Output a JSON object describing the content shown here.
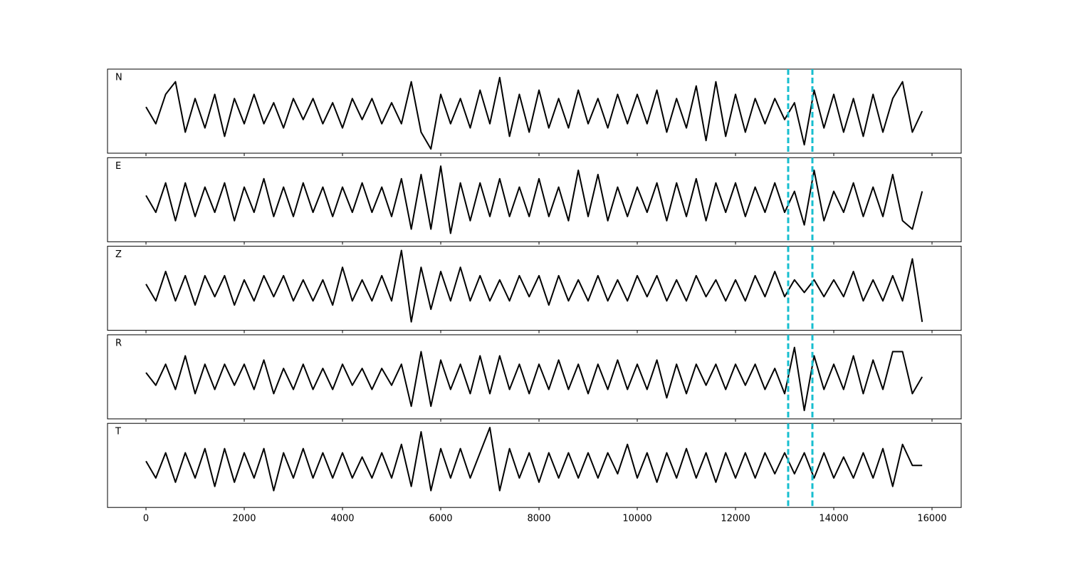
{
  "chart_data": {
    "type": "line",
    "layout": "stacked-panels",
    "x": [
      0,
      200,
      400,
      600,
      800,
      1000,
      1200,
      1400,
      1600,
      1800,
      2000,
      2200,
      2400,
      2600,
      2800,
      3000,
      3200,
      3400,
      3600,
      3800,
      4000,
      4200,
      4400,
      4600,
      4800,
      5000,
      5200,
      5400,
      5600,
      5800,
      6000,
      6200,
      6400,
      6600,
      6800,
      7000,
      7200,
      7400,
      7600,
      7800,
      8000,
      8200,
      8400,
      8600,
      8800,
      9000,
      9200,
      9400,
      9600,
      9800,
      10000,
      10200,
      10400,
      10600,
      10800,
      11000,
      11200,
      11400,
      11600,
      11800,
      12000,
      12200,
      12400,
      12600,
      12800,
      13000,
      13200,
      13400,
      13600,
      13800,
      14000,
      14200,
      14400,
      14600,
      14800,
      15000,
      15200,
      15400,
      15600,
      15800
    ],
    "series": [
      {
        "name": "N",
        "color": "#000000",
        "values": [
          0.1,
          -0.3,
          0.4,
          0.7,
          -0.5,
          0.3,
          -0.4,
          0.4,
          -0.6,
          0.3,
          -0.3,
          0.4,
          -0.3,
          0.2,
          -0.4,
          0.3,
          -0.2,
          0.3,
          -0.3,
          0.2,
          -0.4,
          0.3,
          -0.2,
          0.3,
          -0.3,
          0.2,
          -0.3,
          0.7,
          -0.5,
          -0.9,
          0.4,
          -0.3,
          0.3,
          -0.4,
          0.5,
          -0.3,
          0.8,
          -0.6,
          0.4,
          -0.5,
          0.5,
          -0.4,
          0.3,
          -0.4,
          0.5,
          -0.3,
          0.3,
          -0.4,
          0.4,
          -0.3,
          0.4,
          -0.3,
          0.5,
          -0.5,
          0.3,
          -0.4,
          0.6,
          -0.7,
          0.7,
          -0.6,
          0.4,
          -0.5,
          0.3,
          -0.3,
          0.3,
          -0.2,
          0.2,
          -0.8,
          0.5,
          -0.4,
          0.4,
          -0.5,
          0.3,
          -0.6,
          0.4,
          -0.5,
          0.3,
          0.7,
          -0.5,
          0.0
        ]
      },
      {
        "name": "E",
        "color": "#000000",
        "values": [
          0.1,
          -0.3,
          0.4,
          -0.5,
          0.4,
          -0.4,
          0.3,
          -0.3,
          0.4,
          -0.5,
          0.3,
          -0.3,
          0.5,
          -0.4,
          0.3,
          -0.4,
          0.4,
          -0.3,
          0.3,
          -0.4,
          0.3,
          -0.3,
          0.4,
          -0.3,
          0.3,
          -0.4,
          0.5,
          -0.7,
          0.6,
          -0.7,
          0.8,
          -0.8,
          0.4,
          -0.5,
          0.4,
          -0.4,
          0.5,
          -0.4,
          0.3,
          -0.4,
          0.5,
          -0.4,
          0.3,
          -0.5,
          0.7,
          -0.4,
          0.6,
          -0.5,
          0.3,
          -0.4,
          0.3,
          -0.3,
          0.4,
          -0.5,
          0.4,
          -0.4,
          0.5,
          -0.5,
          0.4,
          -0.3,
          0.4,
          -0.4,
          0.3,
          -0.3,
          0.4,
          -0.3,
          0.2,
          -0.6,
          0.7,
          -0.5,
          0.2,
          -0.3,
          0.4,
          -0.4,
          0.3,
          -0.4,
          0.6,
          -0.5,
          -0.7,
          0.2
        ]
      },
      {
        "name": "Z",
        "color": "#000000",
        "values": [
          0.1,
          -0.3,
          0.4,
          -0.3,
          0.3,
          -0.4,
          0.3,
          -0.2,
          0.3,
          -0.4,
          0.2,
          -0.3,
          0.3,
          -0.2,
          0.3,
          -0.3,
          0.2,
          -0.3,
          0.2,
          -0.4,
          0.5,
          -0.3,
          0.2,
          -0.3,
          0.3,
          -0.3,
          0.9,
          -0.8,
          0.5,
          -0.5,
          0.4,
          -0.3,
          0.5,
          -0.3,
          0.3,
          -0.3,
          0.2,
          -0.3,
          0.3,
          -0.2,
          0.3,
          -0.4,
          0.3,
          -0.3,
          0.2,
          -0.3,
          0.3,
          -0.3,
          0.2,
          -0.3,
          0.3,
          -0.2,
          0.3,
          -0.3,
          0.2,
          -0.3,
          0.3,
          -0.2,
          0.2,
          -0.3,
          0.2,
          -0.3,
          0.3,
          -0.2,
          0.4,
          -0.2,
          0.2,
          -0.1,
          0.2,
          -0.2,
          0.2,
          -0.2,
          0.4,
          -0.3,
          0.2,
          -0.3,
          0.3,
          -0.3,
          0.7,
          -0.8
        ]
      },
      {
        "name": "R",
        "color": "#000000",
        "values": [
          0.1,
          -0.2,
          0.3,
          -0.3,
          0.5,
          -0.4,
          0.3,
          -0.3,
          0.3,
          -0.2,
          0.3,
          -0.3,
          0.4,
          -0.4,
          0.2,
          -0.3,
          0.3,
          -0.3,
          0.2,
          -0.3,
          0.3,
          -0.2,
          0.2,
          -0.3,
          0.2,
          -0.2,
          0.3,
          -0.7,
          0.6,
          -0.7,
          0.4,
          -0.3,
          0.3,
          -0.4,
          0.5,
          -0.4,
          0.5,
          -0.3,
          0.3,
          -0.4,
          0.3,
          -0.3,
          0.4,
          -0.3,
          0.3,
          -0.4,
          0.3,
          -0.3,
          0.4,
          -0.3,
          0.3,
          -0.3,
          0.4,
          -0.5,
          0.3,
          -0.4,
          0.3,
          -0.2,
          0.3,
          -0.3,
          0.3,
          -0.2,
          0.3,
          -0.3,
          0.2,
          -0.4,
          0.7,
          -0.8,
          0.5,
          -0.3,
          0.3,
          -0.3,
          0.5,
          -0.4,
          0.4,
          -0.3,
          0.6,
          0.6,
          -0.4,
          0.0
        ]
      },
      {
        "name": "T",
        "color": "#000000",
        "values": [
          0.1,
          -0.3,
          0.3,
          -0.4,
          0.3,
          -0.3,
          0.4,
          -0.5,
          0.4,
          -0.4,
          0.3,
          -0.3,
          0.4,
          -0.6,
          0.3,
          -0.3,
          0.4,
          -0.3,
          0.3,
          -0.3,
          0.3,
          -0.3,
          0.2,
          -0.3,
          0.3,
          -0.3,
          0.5,
          -0.5,
          0.8,
          -0.6,
          0.4,
          -0.3,
          0.4,
          -0.3,
          0.3,
          0.9,
          -0.6,
          0.4,
          -0.3,
          0.3,
          -0.4,
          0.3,
          -0.3,
          0.3,
          -0.3,
          0.3,
          -0.3,
          0.3,
          -0.2,
          0.5,
          -0.3,
          0.3,
          -0.4,
          0.3,
          -0.3,
          0.4,
          -0.3,
          0.3,
          -0.4,
          0.3,
          -0.3,
          0.3,
          -0.3,
          0.3,
          -0.2,
          0.3,
          -0.2,
          0.3,
          -0.3,
          0.3,
          -0.3,
          0.2,
          -0.3,
          0.3,
          -0.3,
          0.4,
          -0.5,
          0.5,
          0.0,
          0.0
        ]
      }
    ],
    "vlines": [
      13072,
      13565
    ],
    "vline_color": "#17becf",
    "xlim": [
      -783,
      16594
    ],
    "xticks": [
      0,
      2000,
      4000,
      6000,
      8000,
      10000,
      12000,
      14000,
      16000
    ],
    "ylim": [
      -1,
      1
    ]
  }
}
